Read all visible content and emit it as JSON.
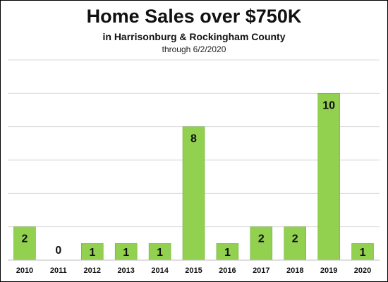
{
  "chart_data": {
    "type": "bar",
    "title": "Home Sales over $750K",
    "subtitle": "in Harrisonburg & Rockingham County",
    "note": "through 6/2/2020",
    "categories": [
      "2010",
      "2011",
      "2012",
      "2013",
      "2014",
      "2015",
      "2016",
      "2017",
      "2018",
      "2019",
      "2020"
    ],
    "values": [
      2,
      0,
      1,
      1,
      1,
      8,
      1,
      2,
      2,
      10,
      1
    ],
    "data_labels": [
      "2",
      "0",
      "1",
      "1",
      "1",
      "8",
      "1",
      "2",
      "2",
      "10",
      "1"
    ],
    "xlabel": "",
    "ylabel": "",
    "ylim": [
      0,
      12
    ],
    "grid": true,
    "legend": "none",
    "bar_color": "#92d050",
    "bar_border_color": "#6aa336",
    "grid_color": "#d9d9d9",
    "axis_color": "#bfbfbf"
  }
}
